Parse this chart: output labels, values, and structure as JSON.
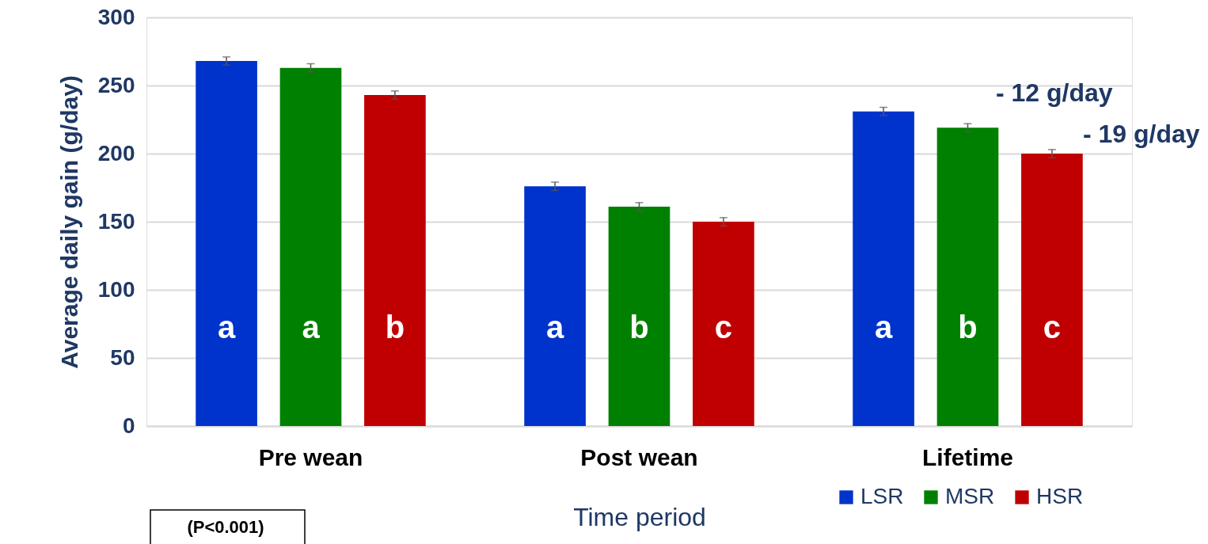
{
  "chart_data": {
    "type": "bar",
    "xlabel": "Time period",
    "ylabel": "Average daily gain (g/day)",
    "categories": [
      "Pre wean",
      "Post wean",
      "Lifetime"
    ],
    "series": [
      {
        "name": "LSR",
        "color": "#0033cc",
        "values": [
          268,
          176,
          231
        ],
        "errors": [
          3,
          3,
          3
        ],
        "value_labels": [
          "a",
          "a",
          "a"
        ]
      },
      {
        "name": "MSR",
        "color": "#008000",
        "values": [
          263,
          161,
          219
        ],
        "errors": [
          3,
          3,
          3
        ],
        "value_labels": [
          "a",
          "b",
          "b"
        ]
      },
      {
        "name": "HSR",
        "color": "#c00000",
        "values": [
          243,
          150,
          200
        ],
        "errors": [
          3,
          3,
          3
        ],
        "value_labels": [
          "b",
          "c",
          "c"
        ]
      }
    ],
    "ylim": [
      0,
      300
    ],
    "yticks": [
      0,
      50,
      100,
      150,
      200,
      250,
      300
    ],
    "grid": "y",
    "legend": "bottom right",
    "annotations": [
      "- 12 g/day",
      "- 19 g/day",
      "(P<0.001)"
    ]
  }
}
